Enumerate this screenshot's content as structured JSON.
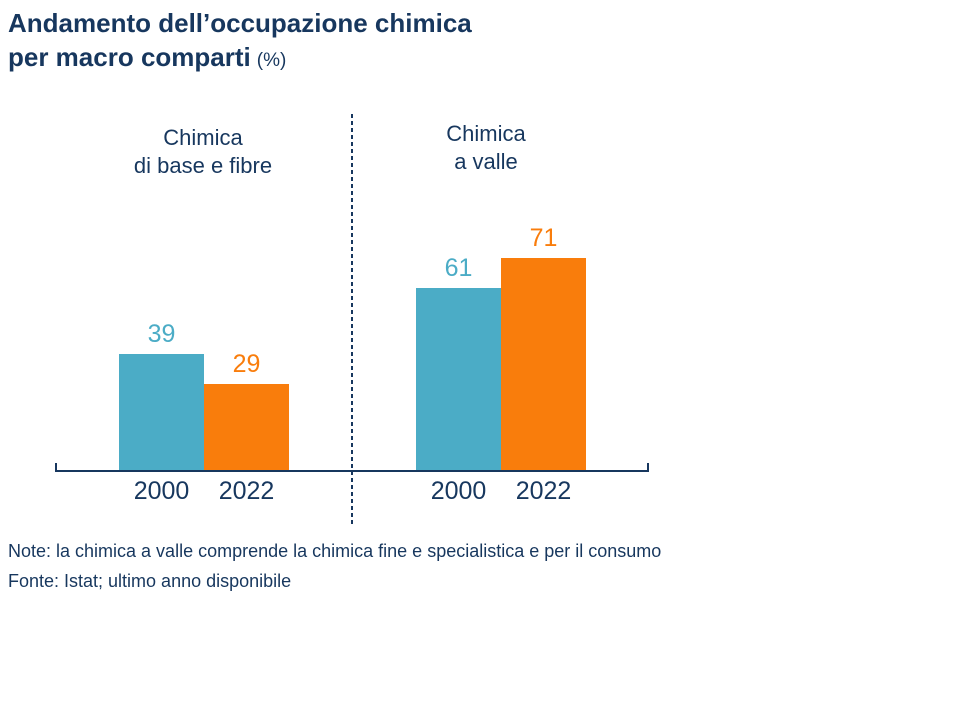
{
  "title": {
    "line1": "Andamento dell’occupazione chimica",
    "line2_bold": "per macro comparti",
    "unit": "(%)"
  },
  "colors": {
    "navy_text": "#17375E",
    "teal_2000": "#4BACC6",
    "orange_2022": "#F97D0C",
    "background": "#FFFFFF"
  },
  "chart_data": {
    "type": "bar",
    "title": "Andamento dell’occupazione chimica per macro comparti (%)",
    "unit": "%",
    "categories": [
      {
        "label_line1": "Chimica",
        "label_line2": "di base e fibre"
      },
      {
        "label_line1": "Chimica",
        "label_line2": "a valle"
      }
    ],
    "x_tick_labels": [
      "2000",
      "2022"
    ],
    "series": [
      {
        "name": "2000",
        "color": "#4BACC6",
        "values": [
          39,
          61
        ]
      },
      {
        "name": "2022",
        "color": "#F97D0C",
        "values": [
          29,
          71
        ]
      }
    ],
    "ylim": [
      0,
      100
    ],
    "grid": false,
    "legend": "none",
    "value_labels": "above bars, colored as series",
    "divider": "vertical dashed line between the two category groups"
  },
  "notes": {
    "note_line": "Note: la chimica a valle comprende la chimica fine e specialistica e per il consumo",
    "fonte_line": "Fonte: Istat; ultimo anno disponibile"
  }
}
